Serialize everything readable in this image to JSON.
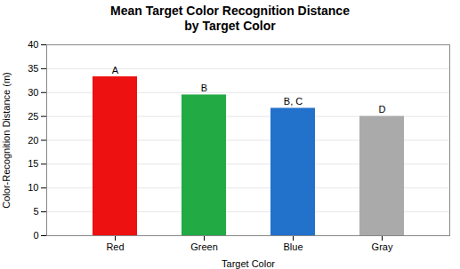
{
  "chart_data": {
    "type": "bar",
    "title": "Mean Target Color Recognition Distance\nby Target Color",
    "xlabel": "Target Color",
    "ylabel": "Color-Recognition Distance (m)",
    "categories": [
      "Red",
      "Green",
      "Blue",
      "Gray"
    ],
    "values": [
      33.3,
      29.5,
      26.7,
      25.0
    ],
    "colors": [
      "#ee1111",
      "#22aa44",
      "#2272cc",
      "#aaaaaa"
    ],
    "annotations": [
      "A",
      "B",
      "B, C",
      "D"
    ],
    "ylim": [
      0,
      40
    ],
    "yticks": [
      0,
      5,
      10,
      15,
      20,
      25,
      30,
      35,
      40
    ],
    "grid": true
  }
}
